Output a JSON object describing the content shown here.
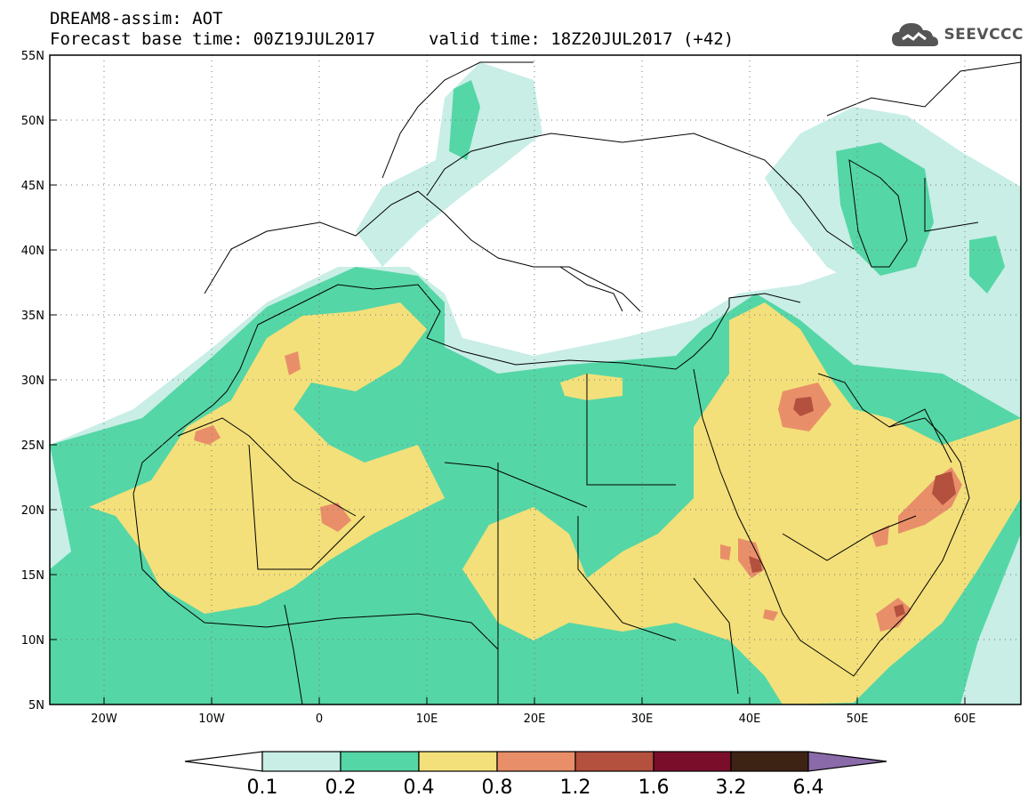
{
  "header": {
    "line1": "DREAM8-assim: AOT",
    "line2": "Forecast base time: 00Z19JUL2017",
    "line3": "valid time: 18Z20JUL2017 (+42)"
  },
  "logo": {
    "text": "SEEVCCC",
    "icon": "cloud-icon"
  },
  "map": {
    "lat_labels": [
      "55N",
      "50N",
      "45N",
      "40N",
      "35N",
      "30N",
      "25N",
      "20N",
      "15N",
      "10N",
      "5N"
    ],
    "lon_labels": [
      "20W",
      "10W",
      "0",
      "10E",
      "20E",
      "30E",
      "40E",
      "50E",
      "60E"
    ],
    "lat_range": [
      5,
      55
    ],
    "lon_range": [
      -25,
      65
    ]
  },
  "colorbar": {
    "labels": [
      "0.1",
      "0.2",
      "0.4",
      "0.8",
      "1.2",
      "1.6",
      "3.2",
      "6.4"
    ],
    "colors": [
      "#ffffff",
      "#c8eee6",
      "#55d6a6",
      "#f3e07a",
      "#e88f6a",
      "#b4503e",
      "#7a0e2a",
      "#3d2314",
      "#8a6aa8"
    ]
  }
}
